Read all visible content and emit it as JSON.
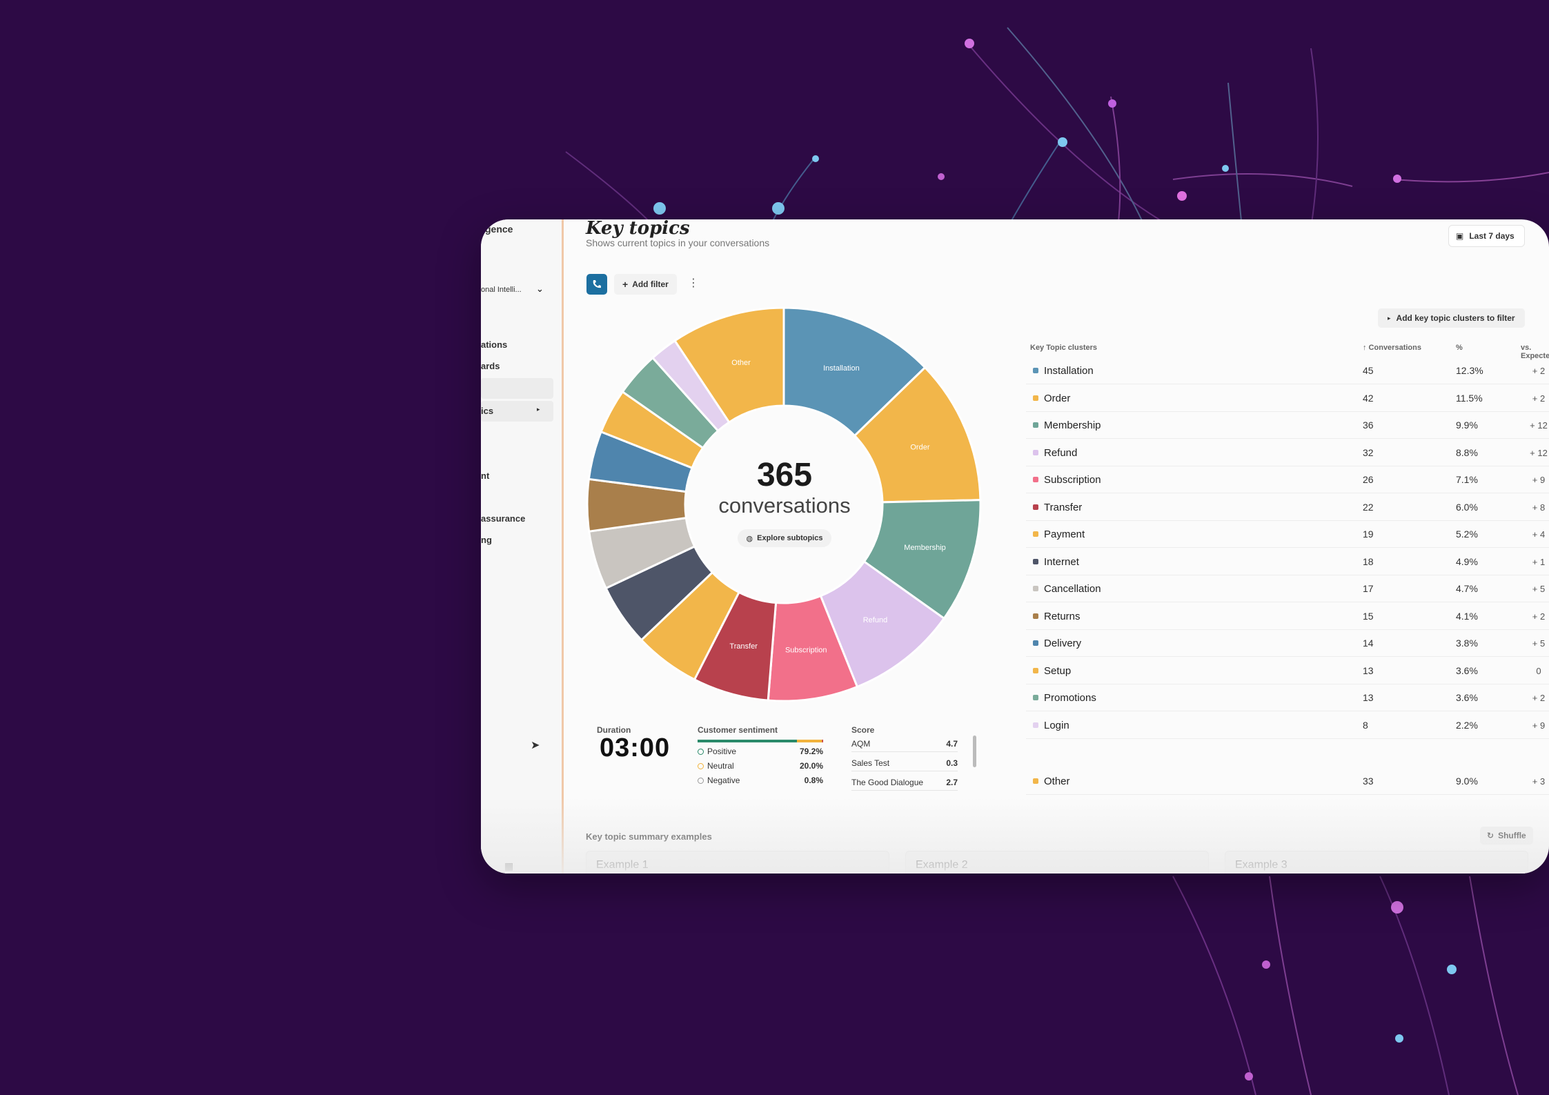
{
  "colors": {
    "background": "#2d0a45",
    "accent": "#5d2a73",
    "phone_button": "#1c6fa0",
    "sidebar_divider": "#f0c8a8"
  },
  "sidebar": {
    "app_name": "gence",
    "workspace": "onal Intelli...",
    "items": [
      "ations",
      "ards",
      "ics",
      "nt",
      "assurance",
      "ng"
    ]
  },
  "header": {
    "title": "Key topics",
    "subtitle": "Shows current topics in your conversations",
    "date_range": "Last 7 days"
  },
  "toolbar": {
    "add_filter": "Add filter",
    "add_clusters": "Add key topic clusters to filter"
  },
  "donut": {
    "total": "365",
    "unit": "conversations",
    "explore_label": "Explore subtopics",
    "slice_labels": [
      "Installation",
      "Order",
      "Membership",
      "Refund",
      "Subscription",
      "Transfer",
      "Other"
    ]
  },
  "chart_data": {
    "type": "pie",
    "title": "",
    "categories": [
      "Installation",
      "Order",
      "Membership",
      "Refund",
      "Subscription",
      "Transfer",
      "Payment",
      "Internet",
      "Cancellation",
      "Returns",
      "Delivery",
      "Setup",
      "Promotions",
      "Login",
      "Other"
    ],
    "values": [
      45,
      42,
      36,
      32,
      26,
      22,
      19,
      18,
      17,
      15,
      14,
      13,
      13,
      8,
      33
    ],
    "colors": [
      "#5b94b5",
      "#f2b64a",
      "#6fa598",
      "#dcc3ec",
      "#f2708a",
      "#b8414d",
      "#f2b64a",
      "#4e5568",
      "#c9c5c0",
      "#a97f4b",
      "#4f85ad",
      "#f2b64a",
      "#7aab9a",
      "#e3d1ef",
      "#f2b64a"
    ]
  },
  "stats": {
    "duration_label": "Duration",
    "duration_value": "03:00",
    "sentiment_label": "Customer sentiment",
    "sentiment": [
      {
        "label": "Positive",
        "value": "79.2%"
      },
      {
        "label": "Neutral",
        "value": "20.0%"
      },
      {
        "label": "Negative",
        "value": "0.8%"
      }
    ],
    "score_label": "Score",
    "scores": [
      {
        "label": "AQM",
        "value": "4.7"
      },
      {
        "label": "Sales Test",
        "value": "0.3"
      },
      {
        "label": "The Good Dialogue",
        "value": "2.7"
      }
    ]
  },
  "table": {
    "headers": {
      "cluster": "Key Topic clusters",
      "conversations": "↑ Conversations",
      "pct": "%",
      "expected": "vs. Expected"
    },
    "rows": [
      {
        "name": "Installation",
        "conversations": "45",
        "pct": "12.3%",
        "expected": "+ 2",
        "color": "#5b94b5"
      },
      {
        "name": "Order",
        "conversations": "42",
        "pct": "11.5%",
        "expected": "+ 2",
        "color": "#f2b64a"
      },
      {
        "name": "Membership",
        "conversations": "36",
        "pct": "9.9%",
        "expected": "+ 12",
        "color": "#6fa598"
      },
      {
        "name": "Refund",
        "conversations": "32",
        "pct": "8.8%",
        "expected": "+ 12",
        "color": "#dcc3ec"
      },
      {
        "name": "Subscription",
        "conversations": "26",
        "pct": "7.1%",
        "expected": "+ 9",
        "color": "#f2708a"
      },
      {
        "name": "Transfer",
        "conversations": "22",
        "pct": "6.0%",
        "expected": "+ 8",
        "color": "#b8414d"
      },
      {
        "name": "Payment",
        "conversations": "19",
        "pct": "5.2%",
        "expected": "+ 4",
        "color": "#f2b64a"
      },
      {
        "name": "Internet",
        "conversations": "18",
        "pct": "4.9%",
        "expected": "+ 1",
        "color": "#4e5568"
      },
      {
        "name": "Cancellation",
        "conversations": "17",
        "pct": "4.7%",
        "expected": "+ 5",
        "color": "#c9c5c0"
      },
      {
        "name": "Returns",
        "conversations": "15",
        "pct": "4.1%",
        "expected": "+ 2",
        "color": "#a97f4b"
      },
      {
        "name": "Delivery",
        "conversations": "14",
        "pct": "3.8%",
        "expected": "+ 5",
        "color": "#4f85ad"
      },
      {
        "name": "Setup",
        "conversations": "13",
        "pct": "3.6%",
        "expected": "0",
        "color": "#f2b64a"
      },
      {
        "name": "Promotions",
        "conversations": "13",
        "pct": "3.6%",
        "expected": "+ 2",
        "color": "#7aab9a"
      },
      {
        "name": "Login",
        "conversations": "8",
        "pct": "2.2%",
        "expected": "+ 9",
        "color": "#e3d1ef"
      }
    ],
    "other": {
      "name": "Other",
      "conversations": "33",
      "pct": "9.0%",
      "expected": "+ 3",
      "color": "#f2b64a"
    }
  },
  "summary": {
    "title": "Key topic summary examples",
    "shuffle": "Shuffle",
    "examples": [
      "Example 1",
      "Example 2",
      "Example 3"
    ]
  }
}
